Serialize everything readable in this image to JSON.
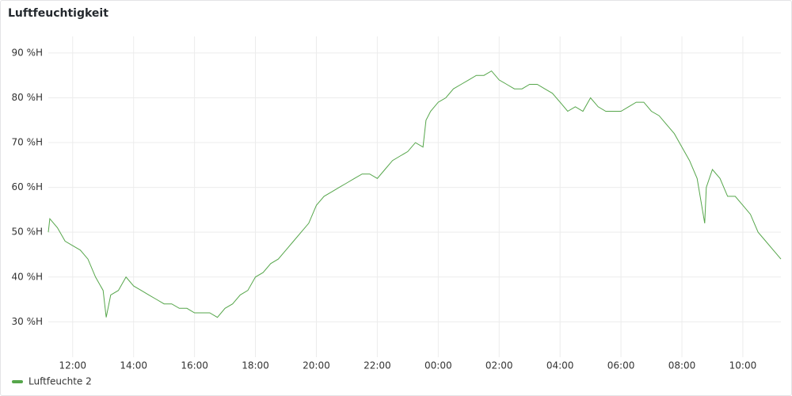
{
  "title": "Luftfeuchtigkeit",
  "chart_data": {
    "type": "line",
    "x": [
      11.2,
      11.25,
      11.5,
      11.75,
      12.0,
      12.25,
      12.5,
      12.75,
      13.0,
      13.1,
      13.25,
      13.5,
      13.75,
      14.0,
      14.25,
      14.5,
      14.75,
      15.0,
      15.25,
      15.5,
      15.75,
      16.0,
      16.25,
      16.5,
      16.75,
      17.0,
      17.25,
      17.5,
      17.75,
      18.0,
      18.25,
      18.5,
      18.75,
      19.0,
      19.25,
      19.5,
      19.75,
      20.0,
      20.25,
      20.5,
      20.75,
      21.0,
      21.25,
      21.5,
      21.75,
      22.0,
      22.25,
      22.5,
      22.75,
      23.0,
      23.25,
      23.5,
      23.6,
      23.75,
      24.0,
      24.25,
      24.5,
      24.75,
      25.0,
      25.25,
      25.5,
      25.75,
      26.0,
      26.25,
      26.5,
      26.75,
      27.0,
      27.25,
      27.5,
      27.75,
      28.0,
      28.25,
      28.5,
      28.75,
      29.0,
      29.25,
      29.5,
      29.75,
      30.0,
      30.25,
      30.5,
      30.75,
      31.0,
      31.25,
      31.5,
      31.75,
      32.0,
      32.25,
      32.5,
      32.75,
      32.8,
      33.0,
      33.25,
      33.5,
      33.75,
      34.0,
      34.25,
      34.5,
      34.75,
      35.0,
      35.25
    ],
    "series": [
      {
        "name": "Luftfeuchte 2",
        "color": "#56a64b",
        "values": [
          50,
          53,
          51,
          48,
          47,
          46,
          44,
          40,
          37,
          31,
          36,
          37,
          40,
          38,
          37,
          36,
          35,
          34,
          34,
          33,
          33,
          32,
          32,
          32,
          31,
          33,
          34,
          36,
          37,
          40,
          41,
          43,
          44,
          46,
          48,
          50,
          52,
          56,
          58,
          59,
          60,
          61,
          62,
          63,
          63,
          62,
          64,
          66,
          67,
          68,
          70,
          69,
          75,
          77,
          79,
          80,
          82,
          83,
          84,
          85,
          85,
          86,
          84,
          83,
          82,
          82,
          83,
          83,
          82,
          81,
          79,
          77,
          78,
          77,
          80,
          78,
          77,
          77,
          77,
          78,
          79,
          79,
          77,
          76,
          74,
          72,
          69,
          66,
          62,
          52,
          60,
          64,
          62,
          58,
          58,
          56,
          54,
          50,
          48,
          46,
          44
        ]
      }
    ],
    "xlim": [
      11.2,
      35.25
    ],
    "xticks": [
      {
        "value": 12,
        "label": "12:00"
      },
      {
        "value": 14,
        "label": "14:00"
      },
      {
        "value": 16,
        "label": "16:00"
      },
      {
        "value": 18,
        "label": "18:00"
      },
      {
        "value": 20,
        "label": "20:00"
      },
      {
        "value": 22,
        "label": "22:00"
      },
      {
        "value": 24,
        "label": "00:00"
      },
      {
        "value": 26,
        "label": "02:00"
      },
      {
        "value": 28,
        "label": "04:00"
      },
      {
        "value": 30,
        "label": "06:00"
      },
      {
        "value": 32,
        "label": "08:00"
      },
      {
        "value": 34,
        "label": "10:00"
      }
    ],
    "ylim": [
      22.1,
      93.7
    ],
    "yticks": [
      {
        "value": 30,
        "label": "30 %H"
      },
      {
        "value": 40,
        "label": "40 %H"
      },
      {
        "value": 50,
        "label": "50 %H"
      },
      {
        "value": 60,
        "label": "60 %H"
      },
      {
        "value": 70,
        "label": "70 %H"
      },
      {
        "value": 80,
        "label": "80 %H"
      },
      {
        "value": 90,
        "label": "90 %H"
      }
    ],
    "grid": true
  }
}
